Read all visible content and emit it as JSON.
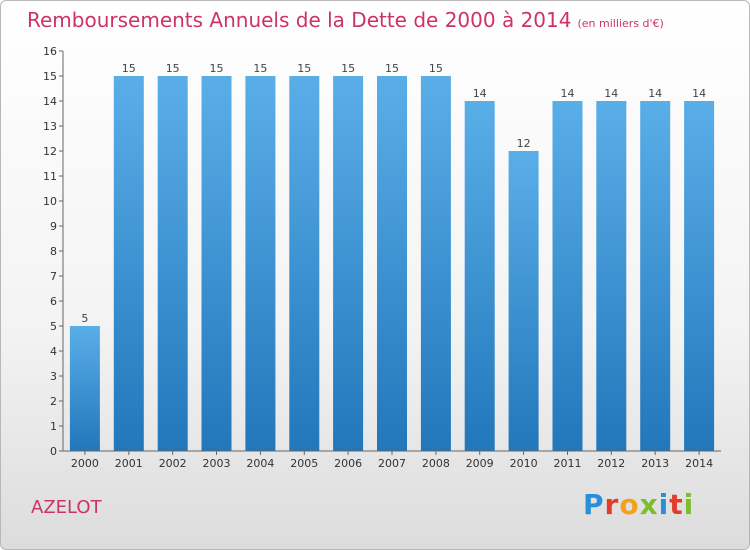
{
  "title": "Remboursements Annuels de la Dette de 2000 à 2014",
  "unit": "(en milliers d'€)",
  "city": "AZELOT",
  "brand": "Proxiti",
  "colors": {
    "title": "#cc3366",
    "bar_light": "#5aaee8",
    "bar_dark": "#2277bb"
  },
  "chart_data": {
    "type": "bar",
    "categories": [
      "2000",
      "2001",
      "2002",
      "2003",
      "2004",
      "2005",
      "2006",
      "2007",
      "2008",
      "2009",
      "2010",
      "2011",
      "2012",
      "2013",
      "2014"
    ],
    "values": [
      5,
      15,
      15,
      15,
      15,
      15,
      15,
      15,
      15,
      14,
      12,
      14,
      14,
      14,
      14
    ],
    "title": "Remboursements Annuels de la Dette de 2000 à 2014",
    "ylabel": "",
    "xlabel": "",
    "ylim": [
      0,
      16
    ],
    "yticks": [
      0,
      1,
      2,
      3,
      4,
      5,
      6,
      7,
      8,
      9,
      10,
      11,
      12,
      13,
      14,
      15,
      16
    ],
    "grid": false
  }
}
